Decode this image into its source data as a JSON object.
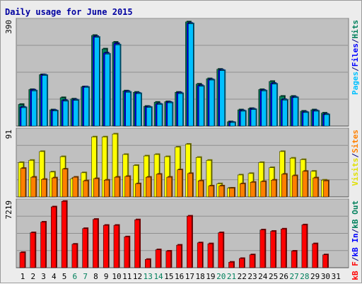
{
  "chart_data": [
    {
      "type": "bar",
      "title": "Daily usage for June 2015",
      "categories": [
        "1",
        "2",
        "3",
        "4",
        "5",
        "6",
        "7",
        "8",
        "9",
        "10",
        "11",
        "12",
        "13",
        "14",
        "15",
        "16",
        "17",
        "18",
        "19",
        "20",
        "21",
        "22",
        "23",
        "24",
        "25",
        "26",
        "27",
        "28",
        "29",
        "30",
        "31"
      ],
      "weekend_days": [
        "6",
        "7",
        "13",
        "14",
        "20",
        "21",
        "27",
        "28"
      ],
      "ymax_label": "390",
      "ymax": 390,
      "legend": [
        {
          "text": "Pages",
          "color": "#00c0ff"
        },
        {
          "text": "/",
          "color": "#000080"
        },
        {
          "text": "Files",
          "color": "#0000ff"
        },
        {
          "text": "/",
          "color": "#000080"
        },
        {
          "text": "Hits",
          "color": "#00805c"
        }
      ],
      "series": [
        {
          "name": "Hits",
          "color": "#00805c",
          "values": [
            80,
            135,
            190,
            60,
            105,
            100,
            145,
            335,
            285,
            310,
            130,
            125,
            73,
            88,
            90,
            125,
            385,
            155,
            175,
            210,
            16,
            60,
            65,
            135,
            165,
            110,
            110,
            55,
            60,
            48,
            0
          ]
        },
        {
          "name": "Files",
          "color": "#0000ff",
          "values": [
            70,
            133,
            189,
            58,
            95,
            97,
            145,
            331,
            270,
            305,
            128,
            122,
            71,
            82,
            88,
            123,
            380,
            150,
            172,
            207,
            14,
            57,
            63,
            132,
            158,
            98,
            107,
            52,
            57,
            44,
            0
          ]
        },
        {
          "name": "Pages",
          "color": "#00c0ff",
          "values": [
            68,
            130,
            187,
            56,
            92,
            95,
            143,
            328,
            266,
            300,
            125,
            120,
            69,
            80,
            86,
            120,
            378,
            147,
            170,
            205,
            13,
            55,
            61,
            130,
            155,
            96,
            105,
            50,
            55,
            42,
            0
          ]
        }
      ]
    },
    {
      "type": "bar",
      "categories": [
        "1",
        "2",
        "3",
        "4",
        "5",
        "6",
        "7",
        "8",
        "9",
        "10",
        "11",
        "12",
        "13",
        "14",
        "15",
        "16",
        "17",
        "18",
        "19",
        "20",
        "21",
        "22",
        "23",
        "24",
        "25",
        "26",
        "27",
        "28",
        "29",
        "30",
        "31"
      ],
      "ymax_label": "91",
      "ymax": 91,
      "legend": [
        {
          "text": "Visits",
          "color": "#e0e000"
        },
        {
          "text": "/",
          "color": "#000080"
        },
        {
          "text": "Sites",
          "color": "#ff8000"
        }
      ],
      "series": [
        {
          "name": "Visits",
          "color": "#ffff00",
          "values": [
            47,
            50,
            62,
            34,
            55,
            25,
            33,
            82,
            82,
            86,
            58,
            43,
            56,
            58,
            55,
            68,
            72,
            54,
            50,
            18,
            12,
            30,
            32,
            47,
            40,
            62,
            53,
            51,
            35,
            23,
            0
          ]
        },
        {
          "name": "Sites",
          "color": "#ff8000",
          "values": [
            39,
            27,
            24,
            26,
            38,
            27,
            22,
            25,
            23,
            27,
            28,
            18,
            27,
            31,
            27,
            37,
            32,
            22,
            15,
            15,
            12,
            18,
            20,
            21,
            23,
            31,
            29,
            35,
            26,
            22,
            0
          ]
        }
      ]
    },
    {
      "type": "bar",
      "ymax_label": "7219",
      "ymax": 7219,
      "categories": [
        "1",
        "2",
        "3",
        "4",
        "5",
        "6",
        "7",
        "8",
        "9",
        "10",
        "11",
        "12",
        "13",
        "14",
        "15",
        "16",
        "17",
        "18",
        "19",
        "20",
        "21",
        "22",
        "23",
        "24",
        "25",
        "26",
        "27",
        "28",
        "29",
        "30",
        "31"
      ],
      "legend": [
        {
          "text": "kB F",
          "color": "#ff0000"
        },
        {
          "text": "/",
          "color": "#000080"
        },
        {
          "text": "kB In",
          "color": "#0000ff"
        },
        {
          "text": "/",
          "color": "#000080"
        },
        {
          "text": "kB Out",
          "color": "#00805c"
        }
      ],
      "series": [
        {
          "name": "kB F",
          "color": "#ff0000",
          "values": [
            1650,
            3800,
            4950,
            6600,
            7200,
            2550,
            4250,
            5250,
            4600,
            4600,
            3350,
            5200,
            900,
            1950,
            1800,
            2450,
            5600,
            2700,
            2600,
            3800,
            600,
            1000,
            1400,
            4100,
            3950,
            4200,
            1800,
            4650,
            2600,
            1400,
            0
          ]
        }
      ]
    }
  ]
}
